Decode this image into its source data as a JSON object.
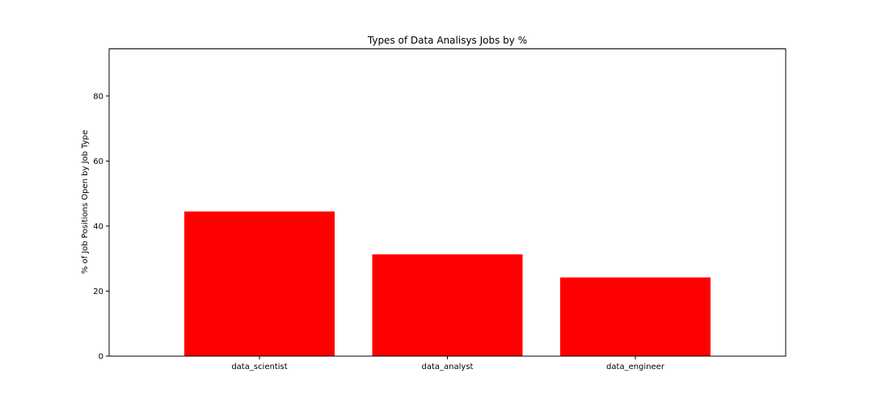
{
  "chart_data": {
    "type": "bar",
    "title": "Types of Data Analisys Jobs by %",
    "xlabel": "",
    "ylabel": "% of Job Positions Open by Job Type",
    "categories": [
      "data_scientist",
      "data_analyst",
      "data_engineer"
    ],
    "values": [
      44.5,
      31.3,
      24.2
    ],
    "ylim": [
      0,
      94.5
    ],
    "yticks": [
      0,
      20,
      40,
      60,
      80
    ],
    "bar_color": "#ff0000",
    "grid": false,
    "legend": "none"
  }
}
